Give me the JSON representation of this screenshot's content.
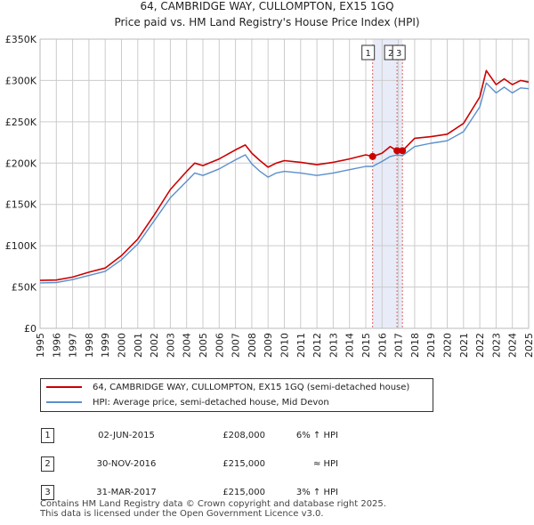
{
  "title_line1": "64, CAMBRIDGE WAY, CULLOMPTON, EX15 1GQ",
  "title_line2": "Price paid vs. HM Land Registry's House Price Index (HPI)",
  "colors": {
    "property": "#cc0000",
    "hpi": "#5b8fcc",
    "shade": "#e8ecf8",
    "grid": "#cccccc",
    "event": "#e06060"
  },
  "chart_data": {
    "type": "line",
    "ylim": [
      0,
      350000
    ],
    "xlim": [
      1995,
      2025
    ],
    "y_ticks": [
      0,
      50000,
      100000,
      150000,
      200000,
      250000,
      300000,
      350000
    ],
    "y_tick_labels": [
      "£0",
      "£50K",
      "£100K",
      "£150K",
      "£200K",
      "£250K",
      "£300K",
      "£350K"
    ],
    "x_ticks": [
      "1995",
      "1996",
      "1997",
      "1998",
      "1999",
      "2000",
      "2001",
      "2002",
      "2003",
      "2004",
      "2005",
      "2006",
      "2007",
      "2008",
      "2009",
      "2010",
      "2011",
      "2012",
      "2013",
      "2014",
      "2015",
      "2016",
      "2017",
      "2018",
      "2019",
      "2020",
      "2021",
      "2022",
      "2023",
      "2024",
      "2025"
    ],
    "shaded_range": [
      2015.42,
      2017.25
    ],
    "series": [
      {
        "name": "64, CAMBRIDGE WAY, CULLOMPTON, EX15 1GQ (semi-detached house)",
        "x": [
          1995,
          1996,
          1997,
          1998,
          1999,
          2000,
          2001,
          2002,
          2003,
          2004,
          2004.5,
          2005,
          2006,
          2007,
          2007.6,
          2008,
          2008.5,
          2009,
          2009.5,
          2010,
          2011,
          2012,
          2013,
          2014,
          2015,
          2015.42,
          2016,
          2016.5,
          2016.92,
          2017.25,
          2018,
          2019,
          2020,
          2021,
          2022,
          2022.4,
          2023,
          2023.5,
          2024,
          2024.5,
          2025
        ],
        "values": [
          58000,
          58500,
          62000,
          68000,
          73000,
          88000,
          108000,
          137000,
          168000,
          190000,
          200000,
          197000,
          205000,
          216000,
          222000,
          212000,
          203000,
          195000,
          200000,
          203000,
          201000,
          198000,
          201000,
          205000,
          210000,
          208000,
          212000,
          220000,
          215000,
          215000,
          230000,
          232000,
          235000,
          248000,
          280000,
          312000,
          295000,
          302000,
          295000,
          300000,
          298000
        ]
      },
      {
        "name": "HPI: Average price, semi-detached house, Mid Devon",
        "x": [
          1995,
          1996,
          1997,
          1998,
          1999,
          2000,
          2001,
          2002,
          2003,
          2004,
          2004.5,
          2005,
          2006,
          2007,
          2007.6,
          2008,
          2008.5,
          2009,
          2009.5,
          2010,
          2011,
          2012,
          2013,
          2014,
          2015,
          2015.42,
          2016,
          2016.5,
          2016.92,
          2017.25,
          2018,
          2019,
          2020,
          2021,
          2022,
          2022.4,
          2023,
          2023.5,
          2024,
          2024.5,
          2025
        ],
        "values": [
          55000,
          55500,
          59000,
          64000,
          69000,
          83000,
          102000,
          130000,
          158000,
          178000,
          188000,
          185000,
          193000,
          204000,
          210000,
          199000,
          190000,
          183000,
          188000,
          190000,
          188000,
          185000,
          188000,
          192000,
          196000,
          196000,
          202000,
          208000,
          210000,
          209000,
          220000,
          224000,
          227000,
          238000,
          268000,
          297000,
          285000,
          292000,
          285000,
          291000,
          290000
        ]
      }
    ],
    "markers": [
      {
        "label": "1",
        "x": 2015.42,
        "value": 208000
      },
      {
        "label": "2",
        "x": 2016.92,
        "value": 215000
      },
      {
        "label": "3",
        "x": 2017.25,
        "value": 215000
      }
    ]
  },
  "legend": {
    "property_label": "64, CAMBRIDGE WAY, CULLOMPTON, EX15 1GQ (semi-detached house)",
    "hpi_label": "HPI: Average price, semi-detached house, Mid Devon"
  },
  "sales": [
    {
      "num": "1",
      "date": "02-JUN-2015",
      "price": "£208,000",
      "rel": "6% ↑ HPI"
    },
    {
      "num": "2",
      "date": "30-NOV-2016",
      "price": "£215,000",
      "rel": "≈ HPI"
    },
    {
      "num": "3",
      "date": "31-MAR-2017",
      "price": "£215,000",
      "rel": "3% ↑ HPI"
    }
  ],
  "footer_line1": "Contains HM Land Registry data © Crown copyright and database right 2025.",
  "footer_line2": "This data is licensed under the Open Government Licence v3.0."
}
